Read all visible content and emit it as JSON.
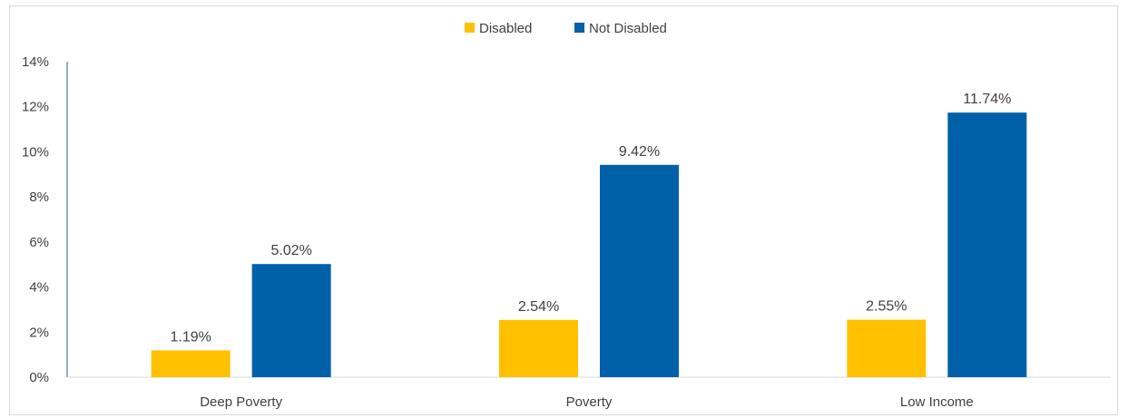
{
  "chart_data": {
    "type": "bar",
    "categories": [
      "Deep Poverty",
      "Poverty",
      "Low Income"
    ],
    "series": [
      {
        "name": "Disabled",
        "color": "#FFC000",
        "values": [
          1.19,
          2.54,
          2.55
        ],
        "labels": [
          "1.19%",
          "2.54%",
          "2.55%"
        ]
      },
      {
        "name": "Not Disabled",
        "color": "#0060A8",
        "values": [
          5.02,
          9.42,
          11.74
        ],
        "labels": [
          "5.02%",
          "9.42%",
          "11.74%"
        ]
      }
    ],
    "ylim": [
      0,
      14
    ],
    "yticks": [
      0,
      2,
      4,
      6,
      8,
      10,
      12,
      14
    ],
    "ytick_labels": [
      "0%",
      "2%",
      "4%",
      "6%",
      "8%",
      "10%",
      "12%",
      "14%"
    ],
    "grid": false,
    "legend": "top-center",
    "title": "",
    "xlabel": "",
    "ylabel": ""
  }
}
